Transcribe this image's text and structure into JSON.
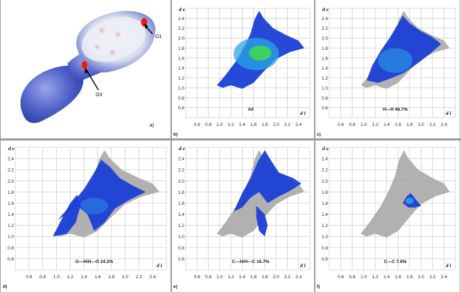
{
  "axes": {
    "de_label": "d e",
    "di_label": "d i",
    "y_ticks": [
      "2.4",
      "2.2",
      "2.0",
      "1.8",
      "1.6",
      "1.4",
      "1.2",
      "1.0",
      "0.8",
      "0.6"
    ],
    "x_ticks": [
      "0.6",
      "0.8",
      "1.0",
      "1.2",
      "1.4",
      "1.6",
      "1.8",
      "2.0",
      "2.2",
      "2.4"
    ],
    "range": [
      0.4,
      2.6
    ]
  },
  "colors": {
    "background": "#ffffff",
    "grid": "#c8c8c8",
    "grey_cloud": "#a8a8a8",
    "blue": "#1a3fd6",
    "cyan": "#2aa6e6",
    "green": "#3fdc4a",
    "arrow": "#000000",
    "surface_blue": "#4f62c8",
    "surface_white": "#e8eaf2",
    "red_spot": "#e01515"
  },
  "panels": [
    {
      "id": "a",
      "letter": "a)",
      "kind": "surface",
      "atom_labels": [
        "O1",
        "O3"
      ]
    },
    {
      "id": "b",
      "letter": "b)",
      "kind": "fingerprint",
      "caption": "All",
      "highlight": "full",
      "percent": null
    },
    {
      "id": "c",
      "letter": "c)",
      "kind": "fingerprint",
      "caption": "H—H  46.7%",
      "highlight": "H...H",
      "percent": 46.7
    },
    {
      "id": "d",
      "letter": "d)",
      "kind": "fingerprint",
      "caption": "O—H/H—O   24.2%",
      "highlight": "O...H/H...O",
      "percent": 24.2
    },
    {
      "id": "e",
      "letter": "e)",
      "kind": "fingerprint",
      "caption": "C—H/H—C  16.7%",
      "highlight": "C...H/H...C",
      "percent": 16.7
    },
    {
      "id": "f",
      "letter": "f)",
      "kind": "fingerprint",
      "caption": "C—C   7.6%",
      "highlight": "C...C",
      "percent": 7.6
    }
  ]
}
